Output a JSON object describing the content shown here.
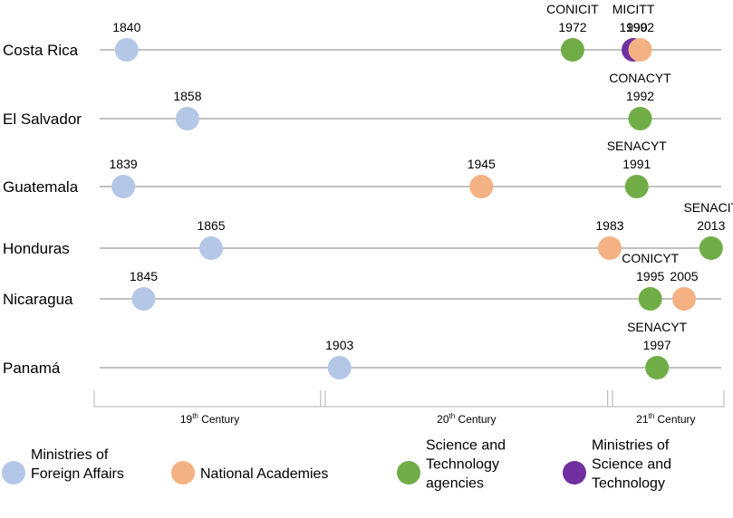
{
  "colors": {
    "foreign_affairs": "#b4c7e7",
    "academies": "#f4b183",
    "st_agencies": "#70ad47",
    "st_ministries": "#7030a0",
    "timeline": "#9a9a9a"
  },
  "timeline": {
    "year_min": 1832,
    "year_max": 2016
  },
  "countries": [
    {
      "name": "Costa Rica",
      "events": [
        {
          "year": 1840,
          "type": "foreign_affairs",
          "lines": [
            "1840"
          ]
        },
        {
          "year": 1972,
          "type": "st_agencies",
          "lines": [
            "CONICIT",
            "1972"
          ]
        },
        {
          "year": 1990,
          "type": "st_ministries",
          "lines": [
            "MICITT",
            "1990"
          ]
        },
        {
          "year": 1992,
          "type": "academies",
          "lines": [
            "1992"
          ]
        }
      ]
    },
    {
      "name": "El Salvador",
      "events": [
        {
          "year": 1858,
          "type": "foreign_affairs",
          "lines": [
            "1858"
          ]
        },
        {
          "year": 1992,
          "type": "st_agencies",
          "lines": [
            "CONACYT",
            "1992"
          ]
        }
      ]
    },
    {
      "name": "Guatemala",
      "events": [
        {
          "year": 1839,
          "type": "foreign_affairs",
          "lines": [
            "1839"
          ]
        },
        {
          "year": 1945,
          "type": "academies",
          "lines": [
            "1945"
          ]
        },
        {
          "year": 1991,
          "type": "st_agencies",
          "lines": [
            "SENACYT",
            "1991"
          ]
        }
      ]
    },
    {
      "name": "Honduras",
      "events": [
        {
          "year": 1865,
          "type": "foreign_affairs",
          "lines": [
            "1865"
          ]
        },
        {
          "year": 1983,
          "type": "academies",
          "lines": [
            "1983"
          ]
        },
        {
          "year": 2013,
          "type": "st_agencies",
          "lines": [
            "SENACIT",
            "2013"
          ]
        }
      ]
    },
    {
      "name": "Nicaragua",
      "events": [
        {
          "year": 1845,
          "type": "foreign_affairs",
          "lines": [
            "1845"
          ]
        },
        {
          "year": 1995,
          "type": "st_agencies",
          "lines": [
            "CONICYT",
            "1995"
          ]
        },
        {
          "year": 2005,
          "type": "academies",
          "lines": [
            "2005"
          ]
        }
      ]
    },
    {
      "name": "Panamá",
      "events": [
        {
          "year": 1903,
          "type": "foreign_affairs",
          "lines": [
            "1903"
          ]
        },
        {
          "year": 1997,
          "type": "st_agencies",
          "lines": [
            "SENACYT",
            "1997"
          ]
        }
      ]
    }
  ],
  "centuries": [
    {
      "ordinal": "19",
      "suffix": "th",
      "word": " Century",
      "from": 1832,
      "to": 1898
    },
    {
      "ordinal": "20",
      "suffix": "th",
      "word": " Century",
      "from": 1899,
      "to": 1983
    },
    {
      "ordinal": "21",
      "suffix": "th",
      "word": " Century",
      "from": 1984,
      "to": 2016
    }
  ],
  "legend": [
    {
      "type": "foreign_affairs",
      "lines": [
        "Ministries of",
        "Foreign Affairs"
      ]
    },
    {
      "type": "academies",
      "lines": [
        "National Academies"
      ]
    },
    {
      "type": "st_agencies",
      "lines": [
        "Science and",
        "Technology",
        "agencies"
      ]
    },
    {
      "type": "st_ministries",
      "lines": [
        "Ministries of",
        "Science and",
        "Technology"
      ]
    }
  ]
}
